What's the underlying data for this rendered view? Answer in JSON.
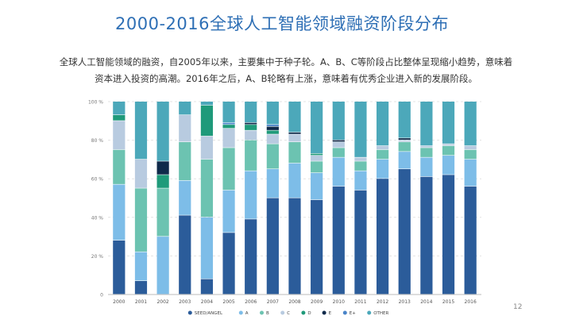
{
  "slide": {
    "title": "2000-2016全球人工智能领域融资阶段分布",
    "subtitle_line1": "全球人工智能领域的融资，自2005年以来，主要集中于种子轮。A、B、C等阶段占比整体呈现缩小趋势，意味着",
    "subtitle_line2": "资本进入投资的高潮。2016年之后，A、B轮略有上涨，意味着有优秀企业进入新的发展阶段。",
    "page_number": "12"
  },
  "chart_data": {
    "type": "bar",
    "stacked": true,
    "categories": [
      "2000",
      "2001",
      "2002",
      "2003",
      "2004",
      "2005",
      "2006",
      "2007",
      "2008",
      "2009",
      "2010",
      "2011",
      "2012",
      "2013",
      "2014",
      "2015",
      "2016"
    ],
    "y_ticks": [
      "0",
      "20 %",
      "40 %",
      "60 %",
      "80 %",
      "100 %"
    ],
    "ylim": [
      0,
      100
    ],
    "grid": true,
    "legend_position": "bottom",
    "series": [
      {
        "name": "SEED/ANGEL",
        "color": "#2b5c9a",
        "values": [
          28,
          7,
          0,
          41,
          8,
          32,
          39,
          50,
          50,
          49,
          56,
          54,
          60,
          65,
          61,
          62,
          56
        ]
      },
      {
        "name": "A",
        "color": "#7dbde8",
        "values": [
          29,
          15,
          30,
          18,
          32,
          22,
          25,
          15,
          18,
          14,
          15,
          10,
          10,
          9,
          10,
          10,
          14
        ]
      },
      {
        "name": "B",
        "color": "#6cc3b1",
        "values": [
          18,
          33,
          25,
          20,
          30,
          22,
          16,
          13,
          11,
          6,
          5,
          5,
          5,
          5,
          5,
          5,
          5
        ]
      },
      {
        "name": "C",
        "color": "#b8cbe0",
        "values": [
          15,
          15,
          0,
          14,
          12,
          10,
          5,
          5,
          4,
          3,
          3,
          2,
          2,
          1,
          1,
          1,
          2
        ]
      },
      {
        "name": "D",
        "color": "#1f9a7a",
        "values": [
          3,
          0,
          7,
          0,
          16,
          2,
          3,
          2,
          0,
          1,
          0,
          0,
          0,
          0,
          0,
          0,
          0
        ]
      },
      {
        "name": "E",
        "color": "#0f2a4a",
        "values": [
          0,
          0,
          7,
          0,
          0,
          0,
          1,
          2,
          1,
          0,
          1,
          0,
          0,
          1,
          0,
          0,
          0
        ]
      },
      {
        "name": "E+",
        "color": "#4a84c8",
        "values": [
          0,
          0,
          0,
          0,
          0,
          1,
          0,
          1,
          0,
          0,
          0,
          0,
          0,
          0,
          0,
          0,
          0
        ]
      },
      {
        "name": "OTHER",
        "color": "#4ca8ba",
        "values": [
          7,
          30,
          31,
          7,
          2,
          11,
          11,
          12,
          16,
          27,
          20,
          29,
          23,
          19,
          23,
          22,
          23
        ]
      }
    ]
  }
}
